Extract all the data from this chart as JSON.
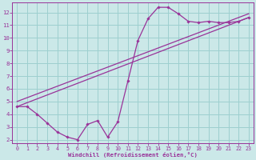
{
  "background_color": "#cbe8e8",
  "grid_color": "#9dcfcf",
  "line_color": "#993399",
  "xlabel": "Windchill (Refroidissement éolien,°C)",
  "xlim": [
    -0.5,
    23.5
  ],
  "ylim": [
    1.7,
    12.8
  ],
  "yticks": [
    2,
    3,
    4,
    5,
    6,
    7,
    8,
    9,
    10,
    11,
    12
  ],
  "xticks": [
    0,
    1,
    2,
    3,
    4,
    5,
    6,
    7,
    8,
    9,
    10,
    11,
    12,
    13,
    14,
    15,
    16,
    17,
    18,
    19,
    20,
    21,
    22,
    23
  ],
  "main_x": [
    0,
    1,
    2,
    3,
    4,
    5,
    6,
    7,
    8,
    9,
    10,
    11,
    12,
    13,
    14,
    15,
    16,
    17,
    18,
    19,
    20,
    21,
    22,
    23
  ],
  "main_y": [
    4.6,
    4.6,
    4.0,
    3.3,
    2.6,
    2.2,
    2.0,
    3.2,
    3.5,
    2.2,
    3.4,
    6.6,
    9.8,
    11.5,
    12.4,
    12.4,
    11.9,
    11.3,
    11.2,
    11.3,
    11.2,
    11.2,
    11.3,
    11.6
  ],
  "trend1_x": [
    0,
    23
  ],
  "trend1_y": [
    4.6,
    11.6
  ],
  "trend2_x": [
    0,
    23
  ],
  "trend2_y": [
    5.0,
    11.9
  ]
}
